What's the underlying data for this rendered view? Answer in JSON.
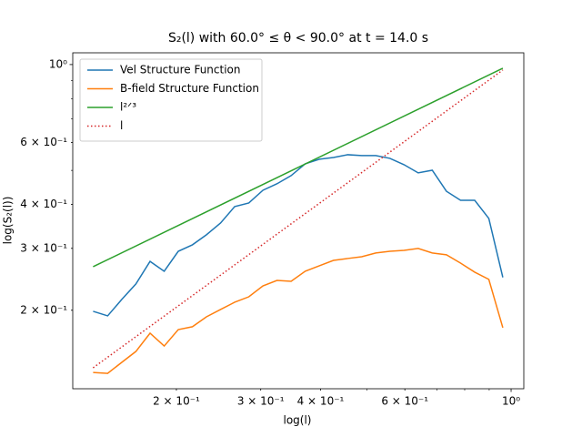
{
  "chart_data": {
    "type": "line",
    "title": "S₂(l) with 60.0° ≤ θ < 90.0° at t = 14.0 s",
    "xlabel": "log(l)",
    "ylabel": "log(S₂(l))",
    "xscale": "log",
    "yscale": "log",
    "legend": "upper left",
    "x": [
      0.134,
      0.1437,
      0.1538,
      0.1646,
      0.1762,
      0.1886,
      0.2018,
      0.216,
      0.2311,
      0.2473,
      0.2647,
      0.2833,
      0.3032,
      0.3244,
      0.3472,
      0.3716,
      0.3977,
      0.4256,
      0.4555,
      0.4875,
      0.5217,
      0.5583,
      0.5976,
      0.6397,
      0.6845,
      0.7328,
      0.7843,
      0.8395,
      0.8984,
      0.961
    ],
    "series": [
      {
        "name": "Vel Structure Function",
        "color": "#1f77b4",
        "linestyle": "solid",
        "values": [
          0.1986,
          0.1928,
          0.2147,
          0.2376,
          0.2755,
          0.2582,
          0.2943,
          0.307,
          0.3279,
          0.3542,
          0.3944,
          0.4039,
          0.439,
          0.458,
          0.483,
          0.522,
          0.538,
          0.544,
          0.554,
          0.551,
          0.551,
          0.541,
          0.519,
          0.492,
          0.5005,
          0.436,
          0.411,
          0.411,
          0.365,
          0.248
        ]
      },
      {
        "name": "B-field Structure Function",
        "color": "#ff7f0e",
        "linestyle": "solid",
        "values": [
          0.1331,
          0.1323,
          0.1422,
          0.1527,
          0.1721,
          0.1582,
          0.1762,
          0.1795,
          0.1916,
          0.201,
          0.2108,
          0.2184,
          0.2346,
          0.2432,
          0.2417,
          0.2582,
          0.2676,
          0.2773,
          0.2807,
          0.284,
          0.2911,
          0.2943,
          0.2961,
          0.2998,
          0.2911,
          0.2876,
          0.2724,
          0.2567,
          0.2448,
          0.1784
        ]
      },
      {
        "name": "l²ᐟ³",
        "color": "#2ca02c",
        "linestyle": "solid",
        "x": [
          0.134,
          0.961
        ],
        "values": [
          0.266,
          0.976
        ]
      },
      {
        "name": "l",
        "color": "#d62728",
        "linestyle": "dotted",
        "x": [
          0.134,
          0.961
        ],
        "values": [
          0.1372,
          0.965
        ]
      }
    ],
    "xlim": [
      0.1215,
      1.063
    ],
    "ylim": [
      0.1196,
      1.08
    ],
    "xticks": [
      {
        "value": 0.2,
        "label": "2 × 10⁻¹"
      },
      {
        "value": 0.3,
        "label": "3 × 10⁻¹"
      },
      {
        "value": 0.4,
        "label": "4 × 10⁻¹"
      },
      {
        "value": 0.6,
        "label": "6 × 10⁻¹"
      },
      {
        "value": 1,
        "label": "10⁰"
      }
    ],
    "xminorticks": [
      0.5,
      0.7,
      0.8,
      0.9
    ],
    "yticks": [
      {
        "value": 0.2,
        "label": "2 × 10⁻¹"
      },
      {
        "value": 0.3,
        "label": "3 × 10⁻¹"
      },
      {
        "value": 0.4,
        "label": "4 × 10⁻¹"
      },
      {
        "value": 0.6,
        "label": "6 × 10⁻¹"
      },
      {
        "value": 1,
        "label": "10⁰"
      }
    ],
    "yminorticks": [
      0.5,
      0.7,
      0.8,
      0.9
    ]
  }
}
